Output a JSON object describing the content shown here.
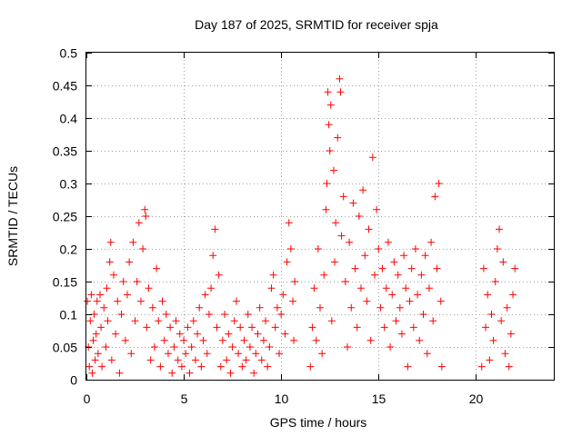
{
  "chart_data": {
    "type": "scatter",
    "title": "Day 187 of 2025, SRMTID for receiver spja",
    "xlabel": "GPS time / hours",
    "ylabel": "SRMTID / TECUs",
    "xlim": [
      0,
      24
    ],
    "ylim": [
      0,
      0.5
    ],
    "xticks": [
      0,
      5,
      10,
      15,
      20
    ],
    "xtick_labels": [
      "0",
      "5",
      "10",
      "15",
      "20"
    ],
    "yticks": [
      0,
      0.05,
      0.1,
      0.15,
      0.2,
      0.25,
      0.3,
      0.35,
      0.4,
      0.45,
      0.5
    ],
    "ytick_labels": [
      "0",
      "0.05",
      "0.1",
      "0.15",
      "0.2",
      "0.25",
      "0.3",
      "0.35",
      "0.4",
      "0.45",
      "0.5"
    ],
    "grid": true,
    "marker": "+",
    "color": "#ff0000",
    "series": [
      {
        "name": "SRMTID",
        "points": [
          [
            0.05,
            0.12
          ],
          [
            0.1,
            0.05
          ],
          [
            0.15,
            0.02
          ],
          [
            0.2,
            0.09
          ],
          [
            0.25,
            0.13
          ],
          [
            0.3,
            0.01
          ],
          [
            0.35,
            0.06
          ],
          [
            0.4,
            0.1
          ],
          [
            0.45,
            0.03
          ],
          [
            0.5,
            0.07
          ],
          [
            0.55,
            0.12
          ],
          [
            0.6,
            0.04
          ],
          [
            0.7,
            0.13
          ],
          [
            0.75,
            0.08
          ],
          [
            0.8,
            0.02
          ],
          [
            0.9,
            0.11
          ],
          [
            1.0,
            0.05
          ],
          [
            1.05,
            0.14
          ],
          [
            1.1,
            0.09
          ],
          [
            1.2,
            0.18
          ],
          [
            1.25,
            0.21
          ],
          [
            1.3,
            0.03
          ],
          [
            1.4,
            0.16
          ],
          [
            1.5,
            0.07
          ],
          [
            1.6,
            0.12
          ],
          [
            1.7,
            0.01
          ],
          [
            1.8,
            0.1
          ],
          [
            1.9,
            0.15
          ],
          [
            2.0,
            0.06
          ],
          [
            2.1,
            0.13
          ],
          [
            2.2,
            0.18
          ],
          [
            2.3,
            0.04
          ],
          [
            2.4,
            0.21
          ],
          [
            2.5,
            0.09
          ],
          [
            2.6,
            0.15
          ],
          [
            2.7,
            0.24
          ],
          [
            2.8,
            0.12
          ],
          [
            2.9,
            0.2
          ],
          [
            3.0,
            0.26
          ],
          [
            3.05,
            0.25
          ],
          [
            3.1,
            0.08
          ],
          [
            3.2,
            0.14
          ],
          [
            3.3,
            0.03
          ],
          [
            3.4,
            0.11
          ],
          [
            3.5,
            0.05
          ],
          [
            3.6,
            0.17
          ],
          [
            3.7,
            0.09
          ],
          [
            3.8,
            0.02
          ],
          [
            3.9,
            0.12
          ],
          [
            4.0,
            0.06
          ],
          [
            4.1,
            0.1
          ],
          [
            4.2,
            0.04
          ],
          [
            4.3,
            0.08
          ],
          [
            4.4,
            0.01
          ],
          [
            4.5,
            0.05
          ],
          [
            4.6,
            0.09
          ],
          [
            4.7,
            0.03
          ],
          [
            4.8,
            0.07
          ],
          [
            4.9,
            0.02
          ],
          [
            5.0,
            0.06
          ],
          [
            5.1,
            0.04
          ],
          [
            5.2,
            0.08
          ],
          [
            5.3,
            0.01
          ],
          [
            5.4,
            0.05
          ],
          [
            5.5,
            0.09
          ],
          [
            5.6,
            0.03
          ],
          [
            5.7,
            0.07
          ],
          [
            5.8,
            0.11
          ],
          [
            5.9,
            0.02
          ],
          [
            6.0,
            0.06
          ],
          [
            6.1,
            0.13
          ],
          [
            6.2,
            0.04
          ],
          [
            6.3,
            0.1
          ],
          [
            6.4,
            0.14
          ],
          [
            6.5,
            0.19
          ],
          [
            6.6,
            0.23
          ],
          [
            6.7,
            0.08
          ],
          [
            6.8,
            0.16
          ],
          [
            6.9,
            0.02
          ],
          [
            7.0,
            0.06
          ],
          [
            7.1,
            0.1
          ],
          [
            7.2,
            0.03
          ],
          [
            7.3,
            0.07
          ],
          [
            7.4,
            0.01
          ],
          [
            7.5,
            0.05
          ],
          [
            7.6,
            0.09
          ],
          [
            7.7,
            0.12
          ],
          [
            7.8,
            0.04
          ],
          [
            7.9,
            0.08
          ],
          [
            8.0,
            0.02
          ],
          [
            8.1,
            0.06
          ],
          [
            8.2,
            0.03
          ],
          [
            8.3,
            0.1
          ],
          [
            8.4,
            0.05
          ],
          [
            8.5,
            0.08
          ],
          [
            8.6,
            0.01
          ],
          [
            8.7,
            0.04
          ],
          [
            8.8,
            0.07
          ],
          [
            8.9,
            0.11
          ],
          [
            9.0,
            0.03
          ],
          [
            9.1,
            0.06
          ],
          [
            9.2,
            0.09
          ],
          [
            9.3,
            0.02
          ],
          [
            9.4,
            0.05
          ],
          [
            9.5,
            0.14
          ],
          [
            9.6,
            0.16
          ],
          [
            9.7,
            0.08
          ],
          [
            9.8,
            0.11
          ],
          [
            9.9,
            0.04
          ],
          [
            10.0,
            0.1
          ],
          [
            10.1,
            0.13
          ],
          [
            10.2,
            0.07
          ],
          [
            10.3,
            0.18
          ],
          [
            10.4,
            0.24
          ],
          [
            10.5,
            0.2
          ],
          [
            10.6,
            0.12
          ],
          [
            10.65,
            0.06
          ],
          [
            10.7,
            0.15
          ],
          [
            11.5,
            0.02
          ],
          [
            11.6,
            0.08
          ],
          [
            11.7,
            0.14
          ],
          [
            11.8,
            0.06
          ],
          [
            11.9,
            0.2
          ],
          [
            12.0,
            0.11
          ],
          [
            12.1,
            0.04
          ],
          [
            12.2,
            0.16
          ],
          [
            12.3,
            0.26
          ],
          [
            12.35,
            0.3
          ],
          [
            12.4,
            0.44
          ],
          [
            12.45,
            0.39
          ],
          [
            12.5,
            0.35
          ],
          [
            12.55,
            0.42
          ],
          [
            12.6,
            0.09
          ],
          [
            12.7,
            0.32
          ],
          [
            12.75,
            0.18
          ],
          [
            12.8,
            0.24
          ],
          [
            12.9,
            0.37
          ],
          [
            13.0,
            0.46
          ],
          [
            13.05,
            0.44
          ],
          [
            13.1,
            0.22
          ],
          [
            13.2,
            0.28
          ],
          [
            13.3,
            0.15
          ],
          [
            13.4,
            0.05
          ],
          [
            13.5,
            0.21
          ],
          [
            13.6,
            0.11
          ],
          [
            13.7,
            0.27
          ],
          [
            13.8,
            0.17
          ],
          [
            13.9,
            0.08
          ],
          [
            14.0,
            0.25
          ],
          [
            14.1,
            0.14
          ],
          [
            14.2,
            0.29
          ],
          [
            14.3,
            0.19
          ],
          [
            14.4,
            0.12
          ],
          [
            14.5,
            0.23
          ],
          [
            14.6,
            0.06
          ],
          [
            14.7,
            0.34
          ],
          [
            14.8,
            0.16
          ],
          [
            14.9,
            0.26
          ],
          [
            15.0,
            0.2
          ],
          [
            15.1,
            0.11
          ],
          [
            15.2,
            0.17
          ],
          [
            15.3,
            0.08
          ],
          [
            15.4,
            0.14
          ],
          [
            15.5,
            0.21
          ],
          [
            15.6,
            0.05
          ],
          [
            15.7,
            0.13
          ],
          [
            15.8,
            0.18
          ],
          [
            15.9,
            0.09
          ],
          [
            16.0,
            0.16
          ],
          [
            16.1,
            0.11
          ],
          [
            16.2,
            0.07
          ],
          [
            16.3,
            0.19
          ],
          [
            16.4,
            0.14
          ],
          [
            16.5,
            0.02
          ],
          [
            16.6,
            0.12
          ],
          [
            16.7,
            0.17
          ],
          [
            16.8,
            0.08
          ],
          [
            16.9,
            0.2
          ],
          [
            17.0,
            0.13
          ],
          [
            17.1,
            0.06
          ],
          [
            17.2,
            0.16
          ],
          [
            17.3,
            0.1
          ],
          [
            17.4,
            0.19
          ],
          [
            17.5,
            0.04
          ],
          [
            17.6,
            0.14
          ],
          [
            17.7,
            0.21
          ],
          [
            17.8,
            0.09
          ],
          [
            17.9,
            0.28
          ],
          [
            18.0,
            0.17
          ],
          [
            18.1,
            0.3
          ],
          [
            18.2,
            0.12
          ],
          [
            18.25,
            0.02
          ],
          [
            20.3,
            0.02
          ],
          [
            20.4,
            0.17
          ],
          [
            20.5,
            0.08
          ],
          [
            20.6,
            0.13
          ],
          [
            20.7,
            0.03
          ],
          [
            20.8,
            0.1
          ],
          [
            20.9,
            0.06
          ],
          [
            21.0,
            0.15
          ],
          [
            21.1,
            0.2
          ],
          [
            21.2,
            0.23
          ],
          [
            21.3,
            0.09
          ],
          [
            21.4,
            0.18
          ],
          [
            21.5,
            0.04
          ],
          [
            21.6,
            0.11
          ],
          [
            21.7,
            0.02
          ],
          [
            21.8,
            0.07
          ],
          [
            21.9,
            0.13
          ],
          [
            22.0,
            0.17
          ]
        ]
      }
    ]
  }
}
